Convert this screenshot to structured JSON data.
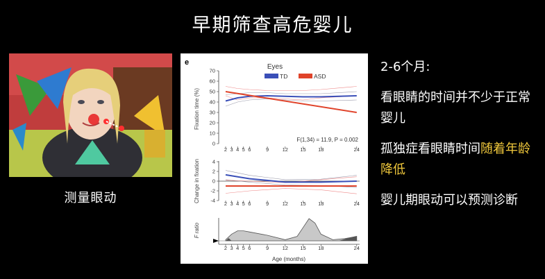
{
  "slide": {
    "title": "早期筛查高危婴儿",
    "video_caption": "测量眼动",
    "notes": [
      {
        "text": "2-6个月:"
      },
      {
        "text": "看眼睛的时间并不少于正常婴儿"
      },
      {
        "plain": "孤独症看眼睛时间",
        "highlight": "随着年龄降低"
      },
      {
        "text": "婴儿期眼动可以预测诊断"
      }
    ],
    "colors": {
      "background": "#000000",
      "text": "#ffffff",
      "highlight": "#f0c83c"
    }
  },
  "figure": {
    "panel_letter": "e",
    "eyes_title": "Eyes",
    "legend": [
      {
        "label": "TD",
        "color": "#3a4fb8"
      },
      {
        "label": "ASD",
        "color": "#e0432a"
      }
    ],
    "stat_text": "F(1,34) = 11.9, P = 0.002",
    "x_ticks": [
      "2",
      "3",
      "4",
      "5",
      "6",
      "9",
      "12",
      "15",
      "18",
      "24"
    ],
    "xlabel": "Age (months)"
  },
  "chart_data": [
    {
      "type": "line",
      "ylabel": "Fixation time (%)",
      "ylim": [
        0,
        70
      ],
      "y_ticks": [
        "0",
        "10",
        "20",
        "30",
        "40",
        "50",
        "60",
        "70"
      ],
      "x": [
        2,
        24
      ],
      "series": [
        {
          "name": "TD",
          "x": [
            2,
            4,
            6,
            9,
            12,
            15,
            18,
            24
          ],
          "values": [
            41,
            44,
            45.5,
            46,
            45.5,
            45,
            45,
            46
          ]
        },
        {
          "name": "ASD",
          "x": [
            2,
            24
          ],
          "values": [
            50,
            30
          ]
        }
      ]
    },
    {
      "type": "line",
      "ylabel": "Change in fixation",
      "ylim": [
        -4,
        4
      ],
      "y_ticks": [
        "4",
        "2",
        "0",
        "-2",
        "-4"
      ],
      "series": [
        {
          "name": "TD",
          "x": [
            2,
            6,
            12,
            18,
            24
          ],
          "values": [
            1.3,
            0.5,
            -0.2,
            -0.2,
            0
          ]
        },
        {
          "name": "ASD",
          "x": [
            2,
            24
          ],
          "values": [
            -1,
            -1
          ]
        }
      ]
    },
    {
      "type": "area",
      "ylabel": "F ratio",
      "x": [
        2,
        3,
        4,
        5,
        6,
        9,
        12,
        14,
        15,
        16,
        17,
        18,
        20,
        22,
        24
      ],
      "values": [
        0.5,
        3,
        4.5,
        4.5,
        4,
        2.5,
        0.5,
        2,
        6,
        10,
        8,
        3,
        0.5,
        1,
        2
      ]
    }
  ]
}
